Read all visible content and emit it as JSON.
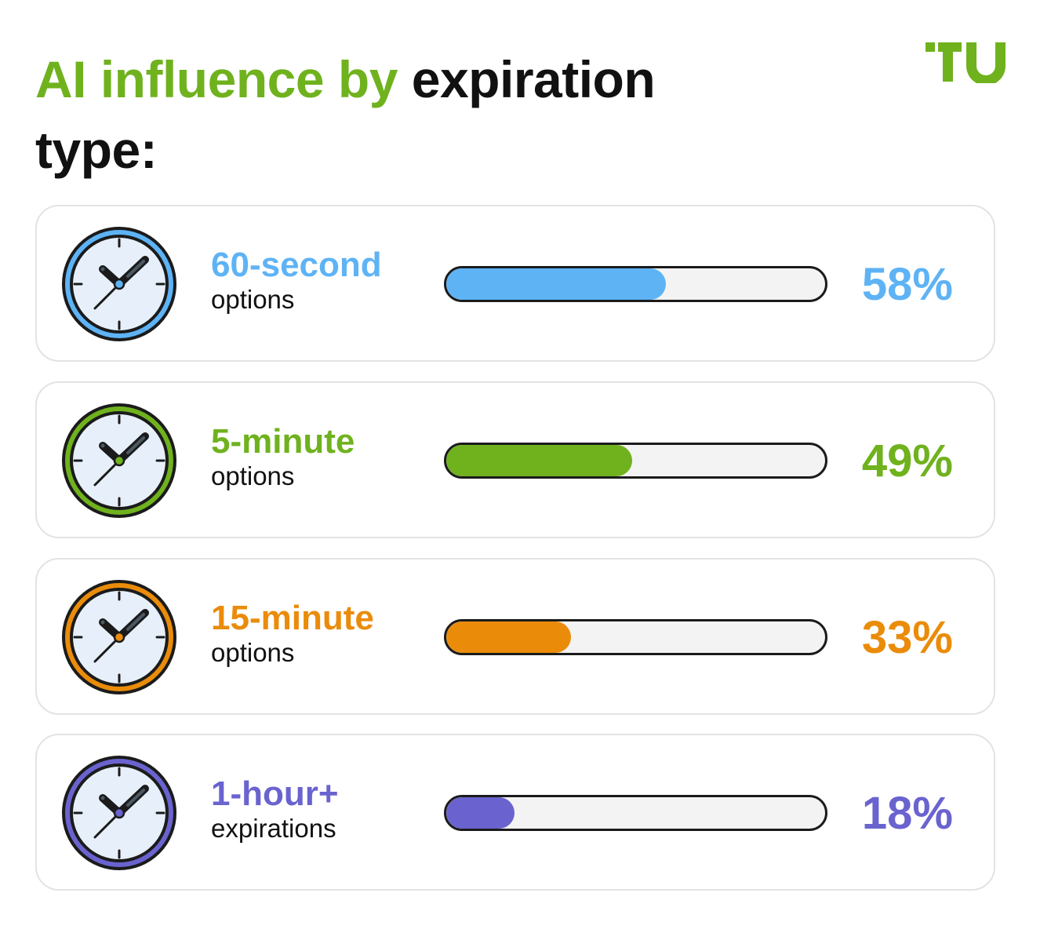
{
  "header": {
    "title_accent": "AI influence by",
    "title_rest": "expiration type:",
    "logo_text": "TU"
  },
  "colors": {
    "brand_green": "#6fb21e",
    "blue": "#5eb3f5",
    "green": "#6fb21e",
    "orange": "#ea8c0a",
    "purple": "#6a63cf",
    "track": "#f3f3f3",
    "outline": "#1b1b1b"
  },
  "chart_data": {
    "type": "bar",
    "orientation": "horizontal",
    "title": "AI influence by expiration type:",
    "xlim": [
      0,
      100
    ],
    "unit": "%",
    "categories": [
      "60-second options",
      "5-minute options",
      "15-minute options",
      "1-hour+ expirations"
    ],
    "values": [
      58,
      49,
      33,
      18
    ],
    "items": [
      {
        "label_main": "60-second",
        "label_sub": "options",
        "value": 58,
        "value_label": "58%",
        "color": "#5eb3f5",
        "icon": "clock-icon"
      },
      {
        "label_main": "5-minute",
        "label_sub": "options",
        "value": 49,
        "value_label": "49%",
        "color": "#6fb21e",
        "icon": "clock-icon"
      },
      {
        "label_main": "15-minute",
        "label_sub": "options",
        "value": 33,
        "value_label": "33%",
        "color": "#ea8c0a",
        "icon": "clock-icon"
      },
      {
        "label_main": "1-hour+",
        "label_sub": "expirations",
        "value": 18,
        "value_label": "18%",
        "color": "#6a63cf",
        "icon": "clock-icon"
      }
    ]
  }
}
